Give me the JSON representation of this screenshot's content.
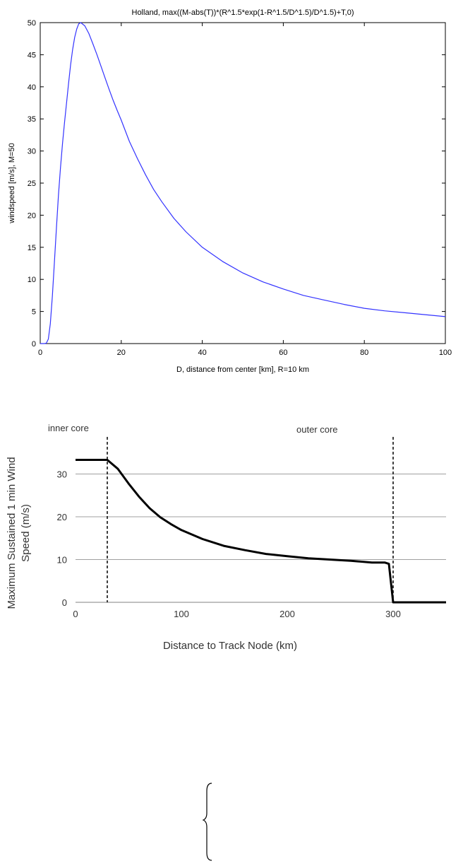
{
  "chart_data": [
    {
      "type": "line",
      "title": "Holland, max((M-abs(T))*(R^1.5*exp(1-R^1.5/D^1.5)/D^1.5)+T,0)",
      "xlabel": "D, distance from center [km], R=10 km",
      "ylabel": "windspeed [m/s], M=50",
      "xlim": [
        0,
        100
      ],
      "ylim": [
        0,
        50
      ],
      "x_ticks": [
        "0",
        "20",
        "40",
        "60",
        "80",
        "100"
      ],
      "y_ticks": [
        "0",
        "5",
        "10",
        "15",
        "20",
        "25",
        "30",
        "35",
        "40",
        "45",
        "50"
      ],
      "grid": false,
      "colors": {
        "series": "#3333ff",
        "axes": "#000000"
      },
      "series": [
        {
          "x": [
            0.5,
            1,
            1.5,
            2,
            2.5,
            3,
            3.5,
            4,
            4.5,
            5,
            5.5,
            6,
            6.5,
            7,
            7.5,
            8,
            8.5,
            9,
            9.5,
            10,
            11,
            12,
            13,
            14,
            15,
            16,
            17,
            18,
            19,
            20,
            22,
            24,
            26,
            28,
            30,
            33,
            36,
            40,
            45,
            50,
            55,
            60,
            65,
            70,
            75,
            80,
            85,
            90,
            95,
            100
          ],
          "y": [
            0,
            0,
            0.05,
            0.7,
            3.1,
            7.4,
            12.7,
            18.1,
            23.1,
            27.4,
            31.2,
            34.4,
            37.5,
            40.6,
            43.4,
            45.8,
            47.7,
            49.0,
            49.8,
            50.0,
            49.5,
            48.3,
            46.7,
            45.0,
            43.2,
            41.4,
            39.6,
            37.9,
            36.3,
            34.8,
            31.5,
            28.8,
            26.3,
            24.0,
            22.1,
            19.5,
            17.4,
            15.0,
            12.8,
            11.0,
            9.6,
            8.5,
            7.5,
            6.8,
            6.1,
            5.5,
            5.1,
            4.8,
            4.5,
            4.2
          ]
        }
      ]
    },
    {
      "type": "line",
      "xlabel": "Distance to Track Node (km)",
      "ylabel": "Maximum Sustained 1 min Wind Speed (m/s)",
      "ylabel_lines": [
        "Maximum Sustained 1 min Wind",
        "Speed (m/s)"
      ],
      "xlim": [
        0,
        350
      ],
      "ylim": [
        0,
        40
      ],
      "x_ticks": [
        "0",
        "100",
        "200",
        "300"
      ],
      "y_ticks": [
        "0",
        "10",
        "20",
        "30"
      ],
      "grid": true,
      "annotations": [
        "inner core",
        "outer core"
      ],
      "vlines": [
        30,
        300
      ],
      "colors": {
        "series": "#000000",
        "grid": "#a0a0a0"
      },
      "series": [
        {
          "x": [
            0,
            30,
            40,
            50,
            60,
            70,
            80,
            90,
            100,
            120,
            140,
            160,
            180,
            200,
            220,
            240,
            260,
            280,
            292,
            296,
            300,
            350
          ],
          "y": [
            33.3,
            33.3,
            31.2,
            27.8,
            24.7,
            22.0,
            19.9,
            18.3,
            16.9,
            14.8,
            13.2,
            12.2,
            11.3,
            10.8,
            10.3,
            10.0,
            9.7,
            9.3,
            9.3,
            9.0,
            0,
            0
          ]
        }
      ]
    }
  ],
  "brace_label": ""
}
